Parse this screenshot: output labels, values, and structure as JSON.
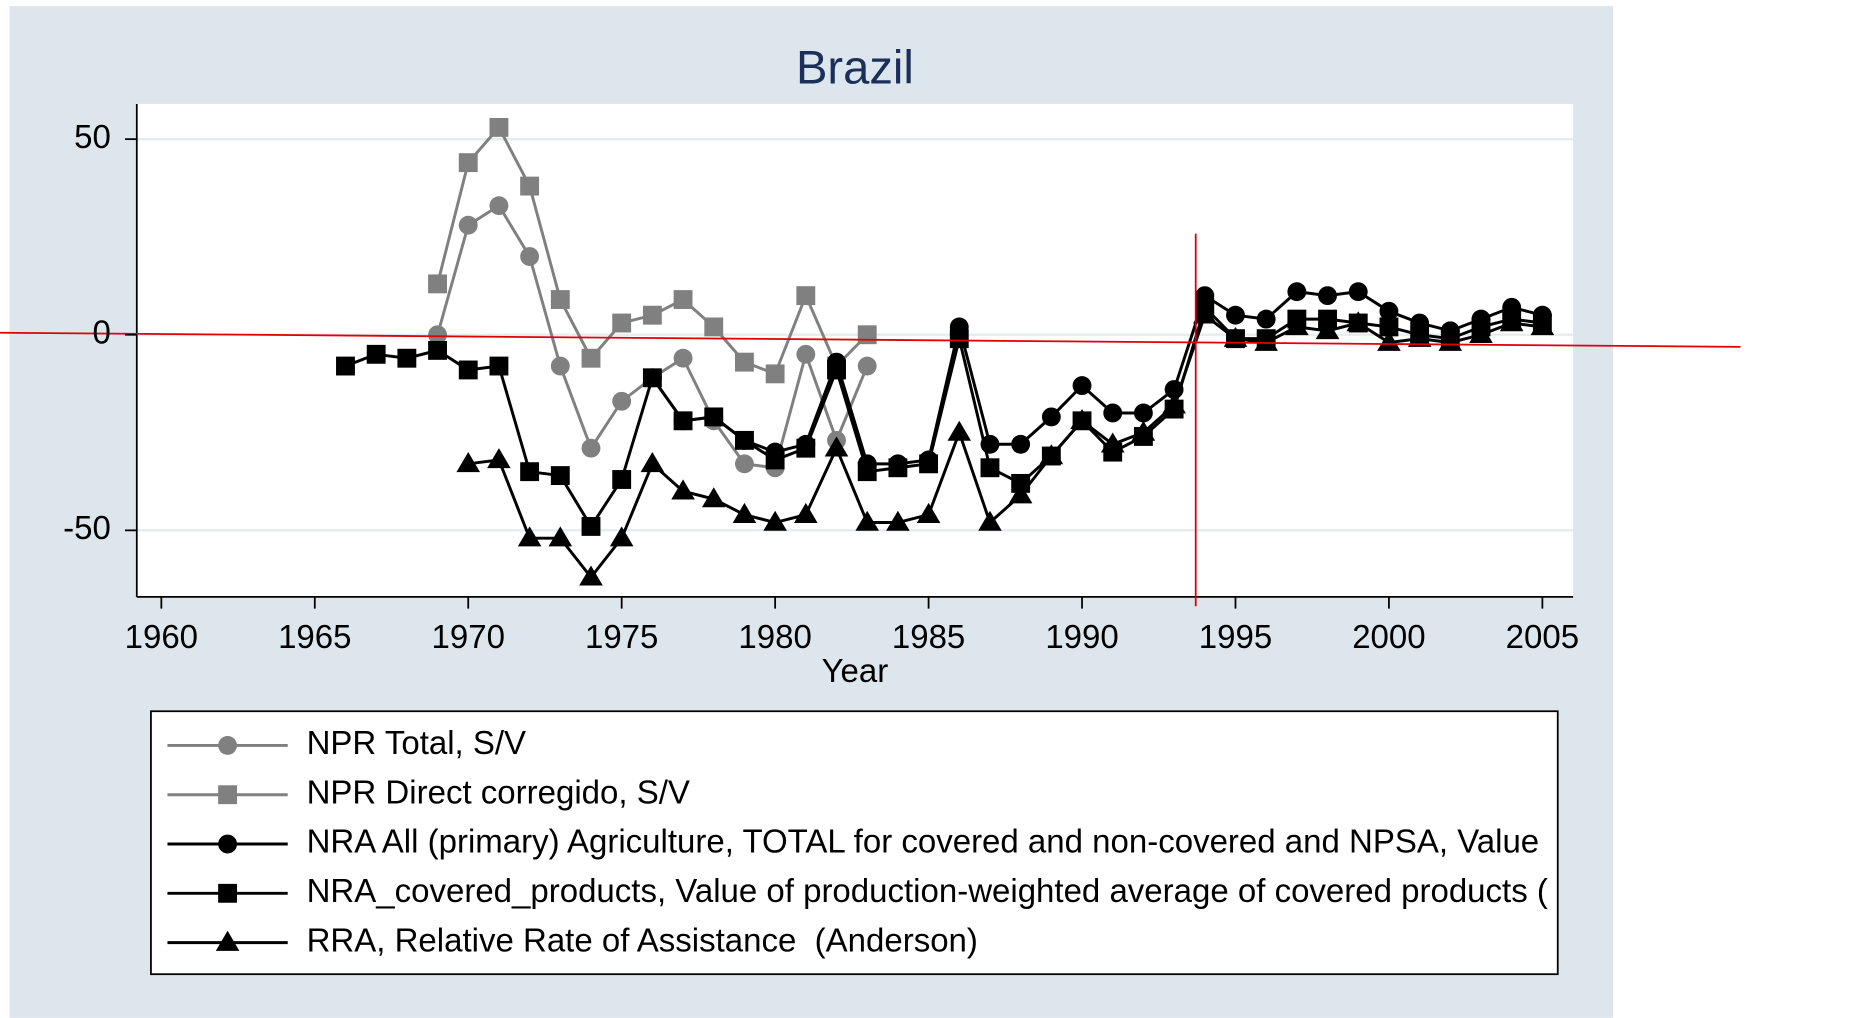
{
  "chart_data": {
    "type": "line",
    "title": "Brazil",
    "x_label": "Year",
    "x": [
      1966,
      1967,
      1968,
      1969,
      1970,
      1971,
      1972,
      1973,
      1974,
      1975,
      1976,
      1977,
      1978,
      1979,
      1980,
      1981,
      1982,
      1983,
      1984,
      1985,
      1986,
      1987,
      1988,
      1989,
      1990,
      1991,
      1992,
      1993,
      1994,
      1995,
      1996,
      1997,
      1998,
      1999,
      2000,
      2001,
      2002,
      2003,
      2004,
      2005
    ],
    "xlim": [
      1959.2,
      2006.0
    ],
    "xticks": [
      1960,
      1965,
      1970,
      1975,
      1980,
      1985,
      1990,
      1995,
      2000,
      2005
    ],
    "ylim": [
      -67,
      59
    ],
    "yticks": [
      -50,
      0,
      50
    ],
    "grid": true,
    "series": [
      {
        "name": "NPR Total, S/V",
        "color": "#808080",
        "marker": "circle",
        "values": [
          null,
          null,
          null,
          0,
          28,
          33,
          20,
          -8,
          -29,
          -17,
          -11,
          -6,
          -22,
          -33,
          -34,
          -5,
          -27,
          -8,
          null,
          null,
          null,
          null,
          null,
          null,
          null,
          null,
          null,
          null,
          null,
          null,
          null,
          null,
          null,
          null,
          null,
          null,
          null,
          null,
          null,
          null
        ]
      },
      {
        "name": "NPR Direct corregido, S/V",
        "color": "#808080",
        "marker": "square",
        "values": [
          null,
          null,
          null,
          13,
          44,
          53,
          38,
          9,
          -6,
          3,
          5,
          9,
          2,
          -7,
          -10,
          10,
          -8,
          0,
          null,
          null,
          null,
          null,
          null,
          null,
          null,
          null,
          null,
          null,
          null,
          null,
          null,
          null,
          null,
          null,
          null,
          null,
          null,
          null,
          null,
          null
        ]
      },
      {
        "name": "NRA All (primary) Agriculture, TOTAL for covered and non-covered and NPSA, Value",
        "color": "#000000",
        "marker": "circle",
        "values": [
          null,
          null,
          null,
          null,
          null,
          null,
          null,
          null,
          null,
          null,
          -11,
          -22,
          -21,
          -27,
          -30,
          -28,
          -7,
          -33,
          -33,
          -32,
          2,
          -28,
          -28,
          -21,
          -13,
          -20,
          -20,
          -14,
          10,
          5,
          4,
          11,
          10,
          11,
          6,
          3,
          1,
          4,
          7,
          5
        ]
      },
      {
        "name": "NRA_covered_products, Value of production-weighted average of covered products (",
        "color": "#000000",
        "marker": "square",
        "values": [
          -8,
          -5,
          -6,
          -4,
          -9,
          -8,
          -35,
          -36,
          -49,
          -37,
          -11,
          -22,
          -21,
          -27,
          -32,
          -29,
          -9,
          -35,
          -34,
          -33,
          -1,
          -34,
          -38,
          -31,
          -22,
          -30,
          -26,
          -19,
          7,
          -1,
          -1,
          4,
          4,
          3,
          2,
          0,
          -1,
          2,
          4,
          3
        ]
      },
      {
        "name": "RRA, Relative Rate of Assistance  (Anderson)",
        "color": "#000000",
        "marker": "triangle",
        "values": [
          null,
          null,
          null,
          null,
          -33,
          -32,
          -52,
          -52,
          -62,
          -52,
          -33,
          -40,
          -42,
          -46,
          -48,
          -46,
          -29,
          -48,
          -48,
          -46,
          -25,
          -48,
          -41,
          -31,
          -22,
          -28,
          -25,
          -18,
          5,
          -1,
          -2,
          2,
          1,
          3,
          -2,
          -1,
          -2,
          0,
          3,
          2
        ]
      }
    ]
  }
}
